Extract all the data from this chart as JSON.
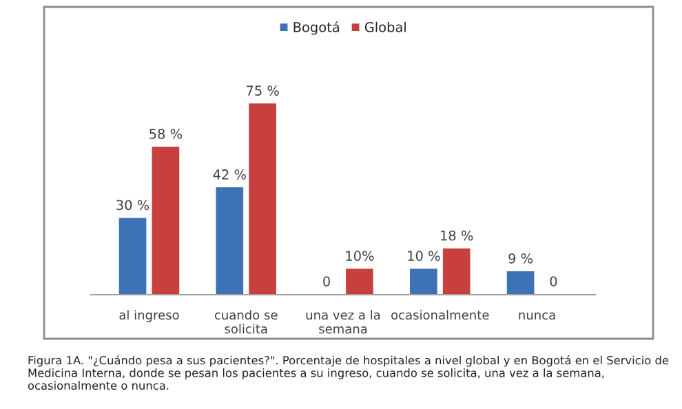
{
  "chart_data": {
    "type": "bar",
    "categories": [
      "al ingreso",
      "cuando se\nsolicita",
      "una vez a la\nsemana",
      "ocasionalmente",
      "nunca"
    ],
    "series": [
      {
        "name": "Bogotá",
        "color": "#3d72b4",
        "values": [
          30,
          42,
          0,
          10,
          9
        ],
        "value_labels": [
          "30 %",
          "42 %",
          "0",
          "10 %",
          "9 %"
        ]
      },
      {
        "name": "Global",
        "color": "#c8403d",
        "values": [
          58,
          75,
          10,
          18,
          0
        ],
        "value_labels": [
          "58 %",
          "75 %",
          "10%",
          "18 %",
          "0"
        ]
      }
    ],
    "legend": "top",
    "grid": false,
    "annotations": [
      "Figura 1A. \"¿Cuándo pesa a sus pacientes?\". Porcentaje de hospitales a nivel global y en Bogotá en el Servicio de Medicina Interna, donde se pesan los pacientes a su ingreso, cuando se solicita, una vez a la semana, ocasionalmente o nunca."
    ]
  }
}
